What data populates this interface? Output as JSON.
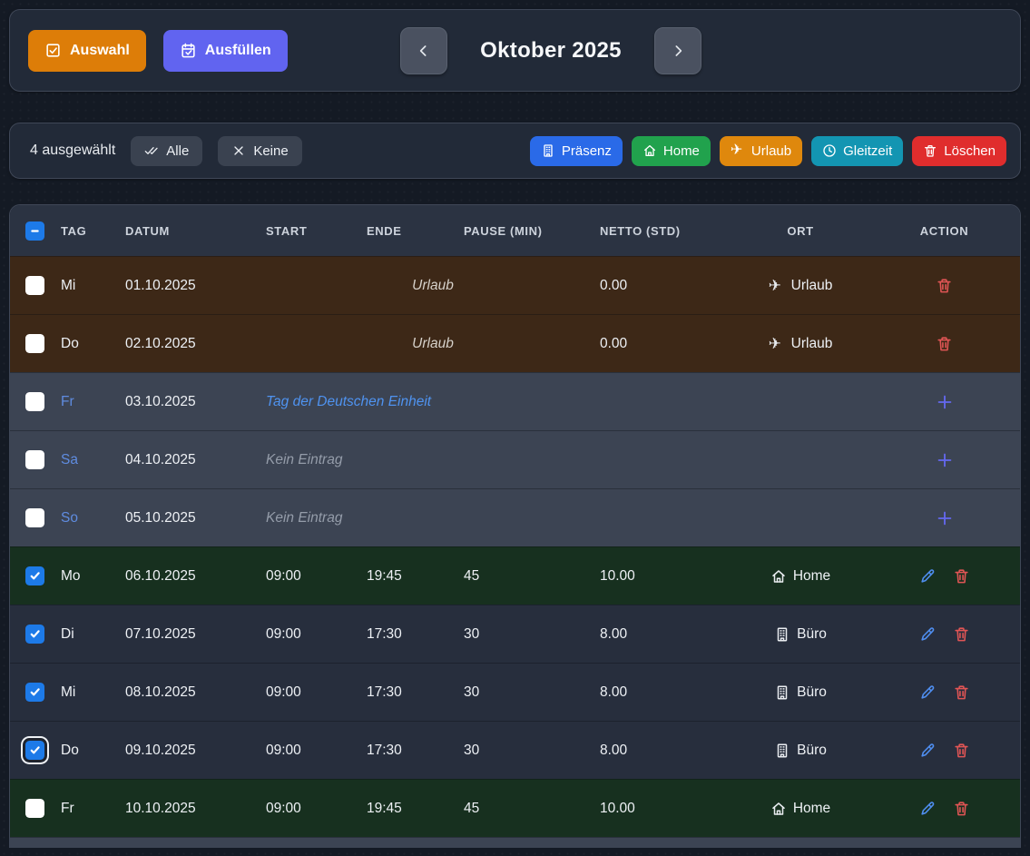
{
  "toolbar": {
    "auswahl_label": "Auswahl",
    "ausfuellen_label": "Ausfüllen",
    "month_title": "Oktober 2025"
  },
  "selection_bar": {
    "selected_text": "4 ausgewählt",
    "alle_label": "Alle",
    "keine_label": "Keine",
    "actions": [
      {
        "name": "praesenz",
        "label": "Präsenz",
        "icon": "building",
        "color": "#2a6ae8"
      },
      {
        "name": "home",
        "label": "Home",
        "icon": "house",
        "color": "#21a24d"
      },
      {
        "name": "urlaub",
        "label": "Urlaub",
        "icon": "plane",
        "color": "#df880d"
      },
      {
        "name": "gleitzeit",
        "label": "Gleitzeit",
        "icon": "clock",
        "color": "#1395b2"
      },
      {
        "name": "loeschen",
        "label": "Löschen",
        "icon": "trash",
        "color": "#e02d2d"
      }
    ]
  },
  "table": {
    "headers": [
      "TAG",
      "DATUM",
      "START",
      "ENDE",
      "PAUSE (MIN)",
      "NETTO (STD)",
      "ORT",
      "ACTION"
    ],
    "header_checkbox_state": "indeterminate",
    "rows": [
      {
        "day": "Mi",
        "date": "01.10.2025",
        "type": "urlaub",
        "special": "Urlaub",
        "start": "",
        "ende": "",
        "pause": "",
        "netto": "0.00",
        "ort": "Urlaub",
        "ort_icon": "plane",
        "checked": false,
        "focused": false,
        "actions": [
          "delete"
        ]
      },
      {
        "day": "Do",
        "date": "02.10.2025",
        "type": "urlaub",
        "special": "Urlaub",
        "start": "",
        "ende": "",
        "pause": "",
        "netto": "0.00",
        "ort": "Urlaub",
        "ort_icon": "plane",
        "checked": false,
        "focused": false,
        "actions": [
          "delete"
        ]
      },
      {
        "day": "Fr",
        "date": "03.10.2025",
        "type": "holiday",
        "special": "Tag der Deutschen Einheit",
        "start": "",
        "ende": "",
        "pause": "",
        "netto": "",
        "ort": "",
        "ort_icon": "",
        "checked": false,
        "focused": false,
        "actions": [
          "add"
        ]
      },
      {
        "day": "Sa",
        "date": "04.10.2025",
        "type": "weekend",
        "special": "Kein Eintrag",
        "start": "",
        "ende": "",
        "pause": "",
        "netto": "",
        "ort": "",
        "ort_icon": "",
        "checked": false,
        "focused": false,
        "actions": [
          "add"
        ]
      },
      {
        "day": "So",
        "date": "05.10.2025",
        "type": "weekend",
        "special": "Kein Eintrag",
        "start": "",
        "ende": "",
        "pause": "",
        "netto": "",
        "ort": "",
        "ort_icon": "",
        "checked": false,
        "focused": false,
        "actions": [
          "add"
        ]
      },
      {
        "day": "Mo",
        "date": "06.10.2025",
        "type": "home",
        "special": "",
        "start": "09:00",
        "ende": "19:45",
        "pause": "45",
        "netto": "10.00",
        "ort": "Home",
        "ort_icon": "house",
        "checked": true,
        "focused": false,
        "actions": [
          "edit",
          "delete"
        ]
      },
      {
        "day": "Di",
        "date": "07.10.2025",
        "type": "office",
        "special": "",
        "start": "09:00",
        "ende": "17:30",
        "pause": "30",
        "netto": "8.00",
        "ort": "Büro",
        "ort_icon": "building",
        "checked": true,
        "focused": false,
        "actions": [
          "edit",
          "delete"
        ]
      },
      {
        "day": "Mi",
        "date": "08.10.2025",
        "type": "office",
        "special": "",
        "start": "09:00",
        "ende": "17:30",
        "pause": "30",
        "netto": "8.00",
        "ort": "Büro",
        "ort_icon": "building",
        "checked": true,
        "focused": false,
        "actions": [
          "edit",
          "delete"
        ]
      },
      {
        "day": "Do",
        "date": "09.10.2025",
        "type": "office",
        "special": "",
        "start": "09:00",
        "ende": "17:30",
        "pause": "30",
        "netto": "8.00",
        "ort": "Büro",
        "ort_icon": "building",
        "checked": true,
        "focused": true,
        "actions": [
          "edit",
          "delete"
        ]
      },
      {
        "day": "Fr",
        "date": "10.10.2025",
        "type": "home",
        "special": "",
        "start": "09:00",
        "ende": "19:45",
        "pause": "45",
        "netto": "10.00",
        "ort": "Home",
        "ort_icon": "house",
        "checked": false,
        "focused": false,
        "actions": [
          "edit",
          "delete"
        ]
      },
      {
        "stub": true,
        "type": "weekend"
      }
    ]
  },
  "colors": {
    "page_bg": "#141a24",
    "card_bg": "#222a38",
    "card_border": "#3f4757",
    "header_bg": "#2b3342",
    "row_urlaub": "#3d2817",
    "row_weekend": "#3c4453",
    "row_office": "#272e3d",
    "row_home": "#17301f",
    "accent_orange": "#dd7d08",
    "accent_indigo": "#6164f0",
    "checkbox_blue": "#1d7ae8",
    "day_blue": "#5f8ce0",
    "holiday_text": "#4f93f0",
    "muted_text": "#949ca9",
    "urlaub_text": "#d6d1ca",
    "edit_blue": "#4f8ef0",
    "delete_red": "#e15555",
    "add_indigo": "#6468f0"
  }
}
